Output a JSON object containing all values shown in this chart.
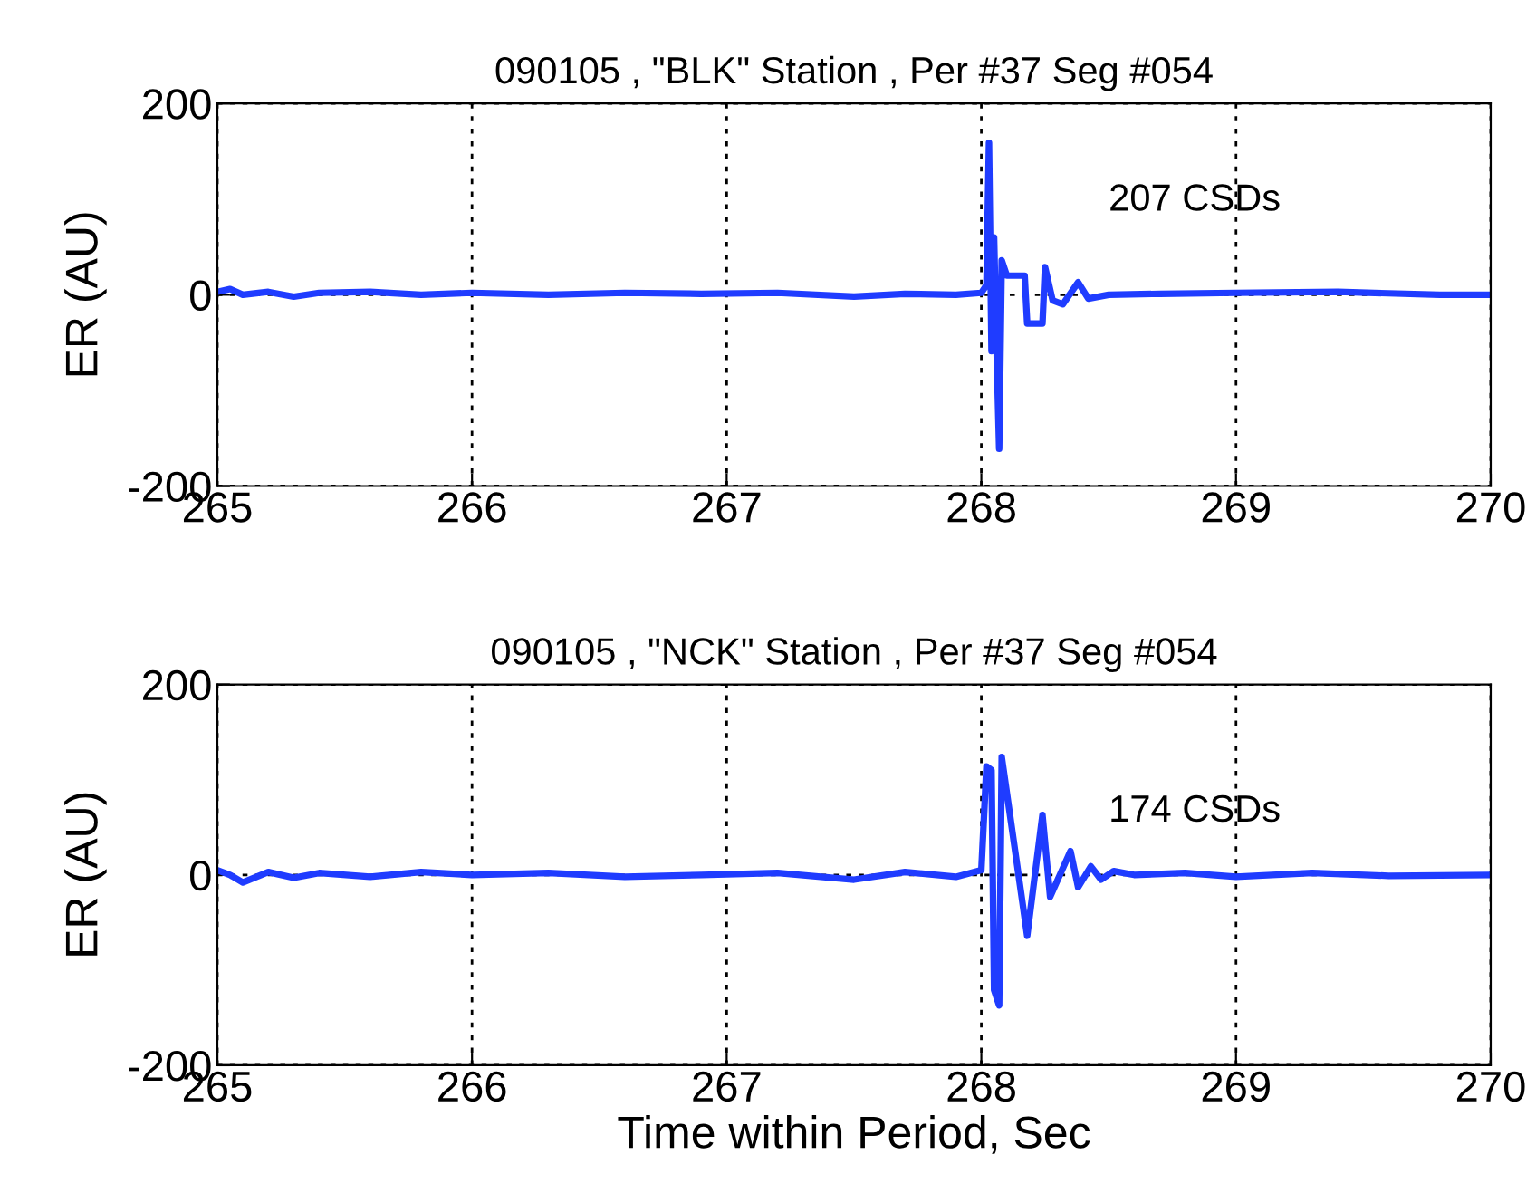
{
  "chart_data": [
    {
      "type": "line",
      "title": "090105 , \"BLK\" Station , Per #37 Seg #054",
      "ylabel": "ER (AU)",
      "xlim": [
        265,
        270
      ],
      "ylim": [
        -200,
        200
      ],
      "xticks": [
        265,
        266,
        267,
        268,
        269,
        270
      ],
      "yticks": [
        -200,
        0,
        200
      ],
      "grid": true,
      "annotations": [
        "207 CSDs"
      ],
      "series": [
        {
          "color": "#1f3cff",
          "x": [
            265.0,
            265.05,
            265.1,
            265.2,
            265.3,
            265.4,
            265.6,
            265.8,
            266.0,
            266.3,
            266.6,
            266.9,
            267.2,
            267.5,
            267.7,
            267.9,
            268.0,
            268.02,
            268.03,
            268.04,
            268.05,
            268.06,
            268.07,
            268.08,
            268.1,
            268.17,
            268.18,
            268.24,
            268.25,
            268.28,
            268.32,
            268.38,
            268.42,
            268.5,
            268.7,
            269.0,
            269.4,
            269.8,
            270.0
          ],
          "values": [
            3,
            6,
            0,
            3,
            -2,
            2,
            3,
            0,
            2,
            0,
            2,
            1,
            2,
            -2,
            1,
            0,
            2,
            10,
            159,
            -59,
            60,
            -60,
            -161,
            36,
            20,
            20,
            -30,
            -30,
            29,
            -6,
            -10,
            13,
            -4,
            0,
            1,
            2,
            3,
            0,
            0
          ]
        }
      ]
    },
    {
      "type": "line",
      "title": "090105 , \"NCK\" Station , Per #37 Seg #054",
      "ylabel": "ER (AU)",
      "xlabel": "Time within Period, Sec",
      "xlim": [
        265,
        270
      ],
      "ylim": [
        -200,
        200
      ],
      "xticks": [
        265,
        266,
        267,
        268,
        269,
        270
      ],
      "yticks": [
        -200,
        0,
        200
      ],
      "grid": true,
      "annotations": [
        "174 CSDs"
      ],
      "series": [
        {
          "color": "#1f3cff",
          "x": [
            265.0,
            265.05,
            265.1,
            265.2,
            265.3,
            265.4,
            265.6,
            265.8,
            266.0,
            266.3,
            266.6,
            266.9,
            267.2,
            267.5,
            267.7,
            267.9,
            268.0,
            268.02,
            268.04,
            268.05,
            268.07,
            268.08,
            268.18,
            268.24,
            268.27,
            268.35,
            268.38,
            268.43,
            268.47,
            268.52,
            268.6,
            268.8,
            269.0,
            269.3,
            269.6,
            270.0
          ],
          "values": [
            5,
            0,
            -8,
            3,
            -3,
            2,
            -2,
            3,
            0,
            2,
            -2,
            0,
            2,
            -5,
            3,
            -2,
            5,
            114,
            110,
            -121,
            -137,
            124,
            -64,
            63,
            -23,
            25,
            -13,
            9,
            -5,
            4,
            0,
            2,
            -2,
            2,
            -1,
            0
          ]
        }
      ]
    }
  ]
}
